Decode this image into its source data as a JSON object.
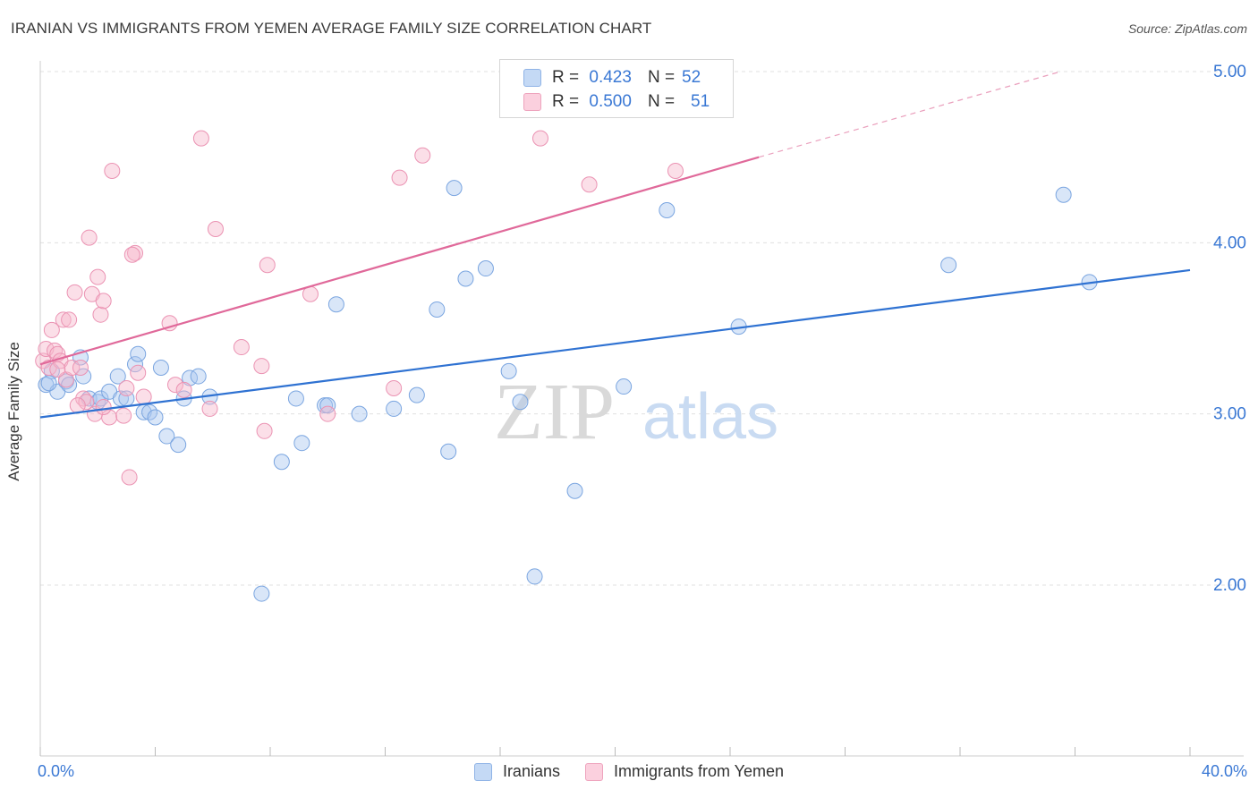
{
  "title": "IRANIAN VS IMMIGRANTS FROM YEMEN AVERAGE FAMILY SIZE CORRELATION CHART",
  "source": "Source: ZipAtlas.com",
  "watermark": {
    "zip": "ZIP",
    "atlas": "atlas"
  },
  "legend": {
    "rows": [
      {
        "r_label": "R =",
        "r_value": "0.423",
        "n_label": "N =",
        "n_value": "52"
      },
      {
        "r_label": "R =",
        "r_value": "0.500",
        "n_label": "N =",
        "n_value": "51"
      }
    ]
  },
  "colors": {
    "blue": "#3a78d4",
    "blue_fill": "#aac8f0",
    "pink": "#e26e98",
    "pink_fill": "#f7b9cd",
    "grid": "#dddddd",
    "axis_text": "#3a78d4"
  },
  "chart_data": {
    "type": "scatter",
    "xlabel": "",
    "ylabel": "Average Family Size",
    "xlim": [
      0,
      40
    ],
    "ylim": [
      1.0,
      5.1
    ],
    "x_tick_labels": [
      "0.0%",
      "40.0%"
    ],
    "y_ticks": [
      2.0,
      3.0,
      4.0,
      5.0
    ],
    "y_tick_labels": [
      "2.00",
      "3.00",
      "4.00",
      "5.00"
    ],
    "grid": true,
    "legend_placement": "bottom-center",
    "series": [
      {
        "name": "Iranians",
        "color": "#3a78d4",
        "trend": {
          "x0": 0,
          "y0": 2.98,
          "x1": 40,
          "y1": 3.84
        },
        "points": [
          [
            0.2,
            3.17
          ],
          [
            0.4,
            3.25
          ],
          [
            0.6,
            3.13
          ],
          [
            0.9,
            3.19
          ],
          [
            1.0,
            3.17
          ],
          [
            1.4,
            3.33
          ],
          [
            1.5,
            3.22
          ],
          [
            1.7,
            3.09
          ],
          [
            2.0,
            3.07
          ],
          [
            2.1,
            3.09
          ],
          [
            2.4,
            3.13
          ],
          [
            2.7,
            3.22
          ],
          [
            2.8,
            3.09
          ],
          [
            3.3,
            3.29
          ],
          [
            3.4,
            3.35
          ],
          [
            3.6,
            3.01
          ],
          [
            3.8,
            3.01
          ],
          [
            4.0,
            2.98
          ],
          [
            4.2,
            3.27
          ],
          [
            4.4,
            2.87
          ],
          [
            4.8,
            2.82
          ],
          [
            5.0,
            3.09
          ],
          [
            5.2,
            3.21
          ],
          [
            5.5,
            3.22
          ],
          [
            5.9,
            3.1
          ],
          [
            7.7,
            1.95
          ],
          [
            8.4,
            2.72
          ],
          [
            8.9,
            3.09
          ],
          [
            9.1,
            2.83
          ],
          [
            9.9,
            3.05
          ],
          [
            10.0,
            3.05
          ],
          [
            10.3,
            3.64
          ],
          [
            11.1,
            3.0
          ],
          [
            12.3,
            3.03
          ],
          [
            13.1,
            3.11
          ],
          [
            13.8,
            3.61
          ],
          [
            14.2,
            2.78
          ],
          [
            14.4,
            4.32
          ],
          [
            14.8,
            3.79
          ],
          [
            15.5,
            3.85
          ],
          [
            16.3,
            3.25
          ],
          [
            16.7,
            3.07
          ],
          [
            17.2,
            2.05
          ],
          [
            18.6,
            2.55
          ],
          [
            20.3,
            3.16
          ],
          [
            21.8,
            4.19
          ],
          [
            24.3,
            3.51
          ],
          [
            31.6,
            3.87
          ],
          [
            35.6,
            4.28
          ],
          [
            36.5,
            3.77
          ],
          [
            0.3,
            3.18
          ],
          [
            3.0,
            3.09
          ]
        ]
      },
      {
        "name": "Immigrants from Yemen",
        "color": "#e26e98",
        "trend": {
          "x0": 0,
          "y0": 3.29,
          "x1": 25,
          "y1": 4.5,
          "ext_x1": 35.5,
          "ext_y1": 5.0
        },
        "points": [
          [
            0.1,
            3.31
          ],
          [
            0.2,
            3.38
          ],
          [
            0.3,
            3.27
          ],
          [
            0.4,
            3.49
          ],
          [
            0.5,
            3.37
          ],
          [
            0.6,
            3.35
          ],
          [
            0.7,
            3.31
          ],
          [
            0.8,
            3.55
          ],
          [
            0.9,
            3.2
          ],
          [
            1.0,
            3.55
          ],
          [
            1.1,
            3.27
          ],
          [
            1.2,
            3.71
          ],
          [
            1.4,
            3.27
          ],
          [
            1.5,
            3.09
          ],
          [
            1.6,
            3.07
          ],
          [
            1.7,
            4.03
          ],
          [
            1.8,
            3.7
          ],
          [
            1.9,
            3.0
          ],
          [
            2.0,
            3.8
          ],
          [
            2.1,
            3.58
          ],
          [
            2.2,
            3.66
          ],
          [
            2.4,
            2.98
          ],
          [
            2.5,
            4.42
          ],
          [
            2.9,
            2.99
          ],
          [
            3.0,
            3.15
          ],
          [
            3.1,
            2.63
          ],
          [
            3.3,
            3.94
          ],
          [
            3.4,
            3.24
          ],
          [
            3.6,
            3.1
          ],
          [
            4.5,
            3.53
          ],
          [
            4.7,
            3.17
          ],
          [
            5.0,
            3.14
          ],
          [
            5.6,
            4.61
          ],
          [
            5.9,
            3.03
          ],
          [
            6.1,
            4.08
          ],
          [
            7.0,
            3.39
          ],
          [
            7.7,
            3.28
          ],
          [
            7.8,
            2.9
          ],
          [
            7.9,
            3.87
          ],
          [
            9.4,
            3.7
          ],
          [
            10.0,
            3.0
          ],
          [
            12.3,
            3.15
          ],
          [
            12.5,
            4.38
          ],
          [
            13.3,
            4.51
          ],
          [
            17.4,
            4.61
          ],
          [
            19.1,
            4.34
          ],
          [
            22.1,
            4.42
          ],
          [
            0.6,
            3.26
          ],
          [
            1.3,
            3.05
          ],
          [
            3.2,
            3.93
          ],
          [
            2.2,
            3.04
          ]
        ]
      }
    ]
  }
}
